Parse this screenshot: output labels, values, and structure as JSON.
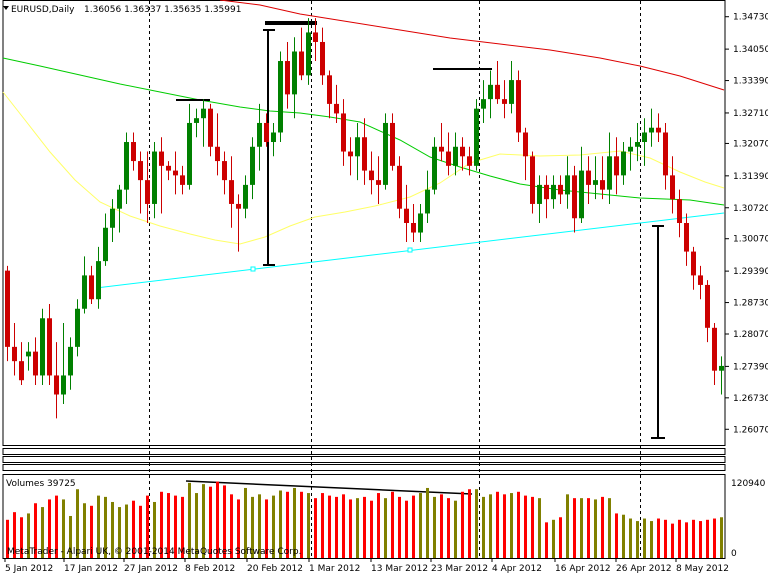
{
  "window": {
    "symbol_title": "EURUSD,Daily",
    "ohlc_readout": "1.36056 1.36337 1.35635 1.35991"
  },
  "price_axis": {
    "labels": [
      "1.34730",
      "1.34050",
      "1.33390",
      "1.32710",
      "1.32070",
      "1.31390",
      "1.30720",
      "1.30070",
      "1.29390",
      "1.28730",
      "1.28070",
      "1.27390",
      "1.26730",
      "1.26070"
    ]
  },
  "volume_panel": {
    "label": "Volumes 39725",
    "axis_max": "120940",
    "axis_min": "0"
  },
  "copyright": "MetaTrader - Alpari UK, © 2001-2014 MetaQuotes Software Corp.",
  "date_axis": {
    "labels": [
      "5 Jan 2012",
      "17 Jan 2012",
      "27 Jan 2012",
      "8 Feb 2012",
      "20 Feb 2012",
      "1 Mar 2012",
      "13 Mar 2012",
      "23 Mar 2012",
      "4 Apr 2012",
      "16 Apr 2012",
      "26 Apr 2012",
      "8 May 2012"
    ]
  },
  "colors": {
    "bull_candle": "#008000",
    "bear_candle": "#cc0000",
    "ma_red": "#dd0000",
    "ma_green": "#00cc00",
    "ma_yellow": "#ffff66",
    "trendline": "#00ffff",
    "volume_up": "#808000",
    "volume_down": "#ff0000",
    "grid": "#000000"
  },
  "chart_data": {
    "type": "candlestick",
    "price_range": [
      1.2574,
      1.3506
    ],
    "price_ticks": [
      1.3473,
      1.3405,
      1.3339,
      1.3271,
      1.3207,
      1.3139,
      1.3072,
      1.3007,
      1.2939,
      1.2873,
      1.2807,
      1.2739,
      1.2673,
      1.2607
    ],
    "volume_max": 120940,
    "candles_note": "ohlc in price units, v = volume",
    "candles": [
      [
        1.294,
        1.295,
        1.275,
        1.278,
        60000
      ],
      [
        1.278,
        1.283,
        1.272,
        1.275,
        72000
      ],
      [
        1.275,
        1.279,
        1.27,
        1.271,
        64000
      ],
      [
        1.276,
        1.279,
        1.273,
        1.277,
        70000
      ],
      [
        1.277,
        1.28,
        1.27,
        1.272,
        86000
      ],
      [
        1.272,
        1.286,
        1.27,
        1.284,
        80000
      ],
      [
        1.284,
        1.287,
        1.27,
        1.272,
        92000
      ],
      [
        1.272,
        1.279,
        1.263,
        1.268,
        98000
      ],
      [
        1.268,
        1.283,
        1.266,
        1.272,
        92000
      ],
      [
        1.272,
        1.28,
        1.269,
        1.278,
        66000
      ],
      [
        1.278,
        1.288,
        1.276,
        1.286,
        108000
      ],
      [
        1.286,
        1.297,
        1.285,
        1.293,
        86000
      ],
      [
        1.293,
        1.295,
        1.287,
        1.288,
        82000
      ],
      [
        1.288,
        1.299,
        1.286,
        1.296,
        98000
      ],
      [
        1.296,
        1.306,
        1.295,
        1.303,
        96000
      ],
      [
        1.303,
        1.309,
        1.3,
        1.307,
        88000
      ],
      [
        1.307,
        1.312,
        1.302,
        1.311,
        80000
      ],
      [
        1.311,
        1.323,
        1.308,
        1.321,
        84000
      ],
      [
        1.321,
        1.323,
        1.315,
        1.317,
        90000
      ],
      [
        1.317,
        1.319,
        1.306,
        1.313,
        82000
      ],
      [
        1.313,
        1.319,
        1.304,
        1.308,
        98000
      ],
      [
        1.308,
        1.321,
        1.305,
        1.319,
        88000
      ],
      [
        1.319,
        1.322,
        1.306,
        1.316,
        104000
      ],
      [
        1.316,
        1.317,
        1.313,
        1.315,
        102000
      ],
      [
        1.315,
        1.319,
        1.31,
        1.314,
        98000
      ],
      [
        1.314,
        1.316,
        1.31,
        1.312,
        96000
      ],
      [
        1.312,
        1.329,
        1.311,
        1.325,
        118000
      ],
      [
        1.325,
        1.328,
        1.322,
        1.326,
        102000
      ],
      [
        1.326,
        1.33,
        1.32,
        1.328,
        116000
      ],
      [
        1.328,
        1.329,
        1.318,
        1.32,
        112000
      ],
      [
        1.32,
        1.327,
        1.314,
        1.317,
        120000
      ],
      [
        1.317,
        1.319,
        1.31,
        1.313,
        114000
      ],
      [
        1.313,
        1.318,
        1.303,
        1.308,
        100000
      ],
      [
        1.308,
        1.31,
        1.298,
        1.307,
        92000
      ],
      [
        1.307,
        1.314,
        1.305,
        1.312,
        110000
      ],
      [
        1.312,
        1.322,
        1.309,
        1.32,
        96000
      ],
      [
        1.32,
        1.329,
        1.315,
        1.325,
        100000
      ],
      [
        1.325,
        1.327,
        1.32,
        1.321,
        92000
      ],
      [
        1.321,
        1.325,
        1.318,
        1.323,
        98000
      ],
      [
        1.323,
        1.34,
        1.321,
        1.338,
        106000
      ],
      [
        1.338,
        1.342,
        1.328,
        1.331,
        104000
      ],
      [
        1.331,
        1.343,
        1.326,
        1.34,
        110000
      ],
      [
        1.34,
        1.345,
        1.334,
        1.335,
        104000
      ],
      [
        1.335,
        1.347,
        1.333,
        1.344,
        102000
      ],
      [
        1.344,
        1.347,
        1.338,
        1.342,
        94000
      ],
      [
        1.342,
        1.345,
        1.333,
        1.335,
        102000
      ],
      [
        1.335,
        1.336,
        1.326,
        1.329,
        98000
      ],
      [
        1.329,
        1.333,
        1.325,
        1.327,
        96000
      ],
      [
        1.327,
        1.33,
        1.316,
        1.319,
        100000
      ],
      [
        1.319,
        1.322,
        1.314,
        1.318,
        92000
      ],
      [
        1.318,
        1.325,
        1.313,
        1.322,
        94000
      ],
      [
        1.322,
        1.326,
        1.312,
        1.315,
        96000
      ],
      [
        1.315,
        1.319,
        1.31,
        1.313,
        90000
      ],
      [
        1.313,
        1.318,
        1.308,
        1.312,
        102000
      ],
      [
        1.312,
        1.327,
        1.311,
        1.325,
        94000
      ],
      [
        1.325,
        1.327,
        1.315,
        1.316,
        104000
      ],
      [
        1.316,
        1.318,
        1.305,
        1.307,
        96000
      ],
      [
        1.307,
        1.312,
        1.3,
        1.304,
        90000
      ],
      [
        1.304,
        1.308,
        1.3,
        1.302,
        98000
      ],
      [
        1.302,
        1.308,
        1.3,
        1.306,
        102000
      ],
      [
        1.306,
        1.315,
        1.304,
        1.311,
        110000
      ],
      [
        1.311,
        1.322,
        1.31,
        1.32,
        96000
      ],
      [
        1.32,
        1.325,
        1.317,
        1.319,
        100000
      ],
      [
        1.319,
        1.323,
        1.314,
        1.316,
        94000
      ],
      [
        1.316,
        1.323,
        1.314,
        1.32,
        90000
      ],
      [
        1.32,
        1.322,
        1.315,
        1.318,
        104000
      ],
      [
        1.318,
        1.32,
        1.314,
        1.316,
        108000
      ],
      [
        1.316,
        1.33,
        1.315,
        1.328,
        108000
      ],
      [
        1.328,
        1.334,
        1.325,
        1.33,
        96000
      ],
      [
        1.33,
        1.336,
        1.326,
        1.333,
        100000
      ],
      [
        1.333,
        1.338,
        1.329,
        1.33,
        104000
      ],
      [
        1.33,
        1.334,
        1.326,
        1.329,
        100000
      ],
      [
        1.329,
        1.338,
        1.327,
        1.334,
        102000
      ],
      [
        1.334,
        1.336,
        1.321,
        1.323,
        104000
      ],
      [
        1.323,
        1.324,
        1.313,
        1.318,
        98000
      ],
      [
        1.318,
        1.319,
        1.306,
        1.308,
        96000
      ],
      [
        1.308,
        1.314,
        1.304,
        1.312,
        94000
      ],
      [
        1.312,
        1.314,
        1.305,
        1.309,
        56000
      ],
      [
        1.309,
        1.314,
        1.307,
        1.312,
        60000
      ],
      [
        1.312,
        1.314,
        1.308,
        1.31,
        64000
      ],
      [
        1.31,
        1.318,
        1.307,
        1.314,
        100000
      ],
      [
        1.314,
        1.316,
        1.302,
        1.305,
        94000
      ],
      [
        1.305,
        1.32,
        1.304,
        1.315,
        94000
      ],
      [
        1.315,
        1.318,
        1.308,
        1.312,
        94000
      ],
      [
        1.312,
        1.318,
        1.309,
        1.313,
        92000
      ],
      [
        1.313,
        1.318,
        1.309,
        1.311,
        96000
      ],
      [
        1.311,
        1.323,
        1.308,
        1.318,
        94000
      ],
      [
        1.318,
        1.322,
        1.31,
        1.314,
        70000
      ],
      [
        1.314,
        1.321,
        1.312,
        1.319,
        68000
      ],
      [
        1.319,
        1.322,
        1.315,
        1.32,
        62000
      ],
      [
        1.32,
        1.325,
        1.317,
        1.321,
        58000
      ],
      [
        1.321,
        1.326,
        1.316,
        1.323,
        62000
      ],
      [
        1.323,
        1.328,
        1.32,
        1.324,
        58000
      ],
      [
        1.324,
        1.327,
        1.321,
        1.323,
        62000
      ],
      [
        1.323,
        1.325,
        1.311,
        1.314,
        60000
      ],
      [
        1.314,
        1.318,
        1.306,
        1.309,
        54000
      ],
      [
        1.309,
        1.311,
        1.301,
        1.304,
        60000
      ],
      [
        1.304,
        1.306,
        1.295,
        1.298,
        56000
      ],
      [
        1.298,
        1.299,
        1.29,
        1.293,
        60000
      ],
      [
        1.293,
        1.295,
        1.288,
        1.291,
        58000
      ],
      [
        1.291,
        1.292,
        1.279,
        1.282,
        60000
      ],
      [
        1.282,
        1.283,
        1.27,
        1.273,
        62000
      ],
      [
        1.273,
        1.276,
        1.268,
        1.274,
        64000
      ]
    ]
  }
}
